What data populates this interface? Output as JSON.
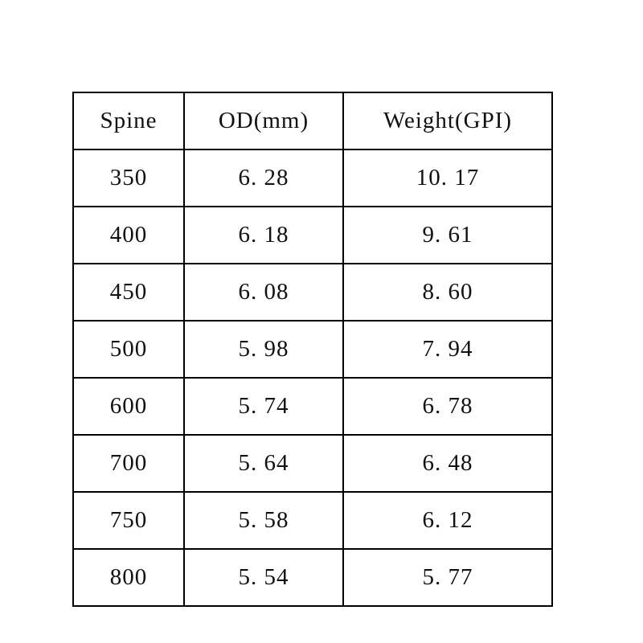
{
  "table": {
    "headers": [
      "Spine",
      "OD(mm)",
      "Weight(GPI)"
    ],
    "rows": [
      [
        "350",
        "6. 28",
        "10. 17"
      ],
      [
        "400",
        "6. 18",
        "9. 61"
      ],
      [
        "450",
        "6. 08",
        "8. 60"
      ],
      [
        "500",
        "5. 98",
        "7. 94"
      ],
      [
        "600",
        "5. 74",
        "6. 78"
      ],
      [
        "700",
        "5. 64",
        "6. 48"
      ],
      [
        "750",
        "5. 58",
        "6. 12"
      ],
      [
        "800",
        "5. 54",
        "5. 77"
      ]
    ]
  },
  "chart_data": {
    "type": "table",
    "title": "",
    "columns": [
      "Spine",
      "OD(mm)",
      "Weight(GPI)"
    ],
    "rows": [
      [
        350,
        6.28,
        10.17
      ],
      [
        400,
        6.18,
        9.61
      ],
      [
        450,
        6.08,
        8.6
      ],
      [
        500,
        5.98,
        7.94
      ],
      [
        600,
        5.74,
        6.78
      ],
      [
        700,
        5.64,
        6.48
      ],
      [
        750,
        5.58,
        6.12
      ],
      [
        800,
        5.54,
        5.77
      ]
    ]
  },
  "colors": {
    "background": "#ffffff",
    "border": "#000000",
    "text": "#111111"
  }
}
